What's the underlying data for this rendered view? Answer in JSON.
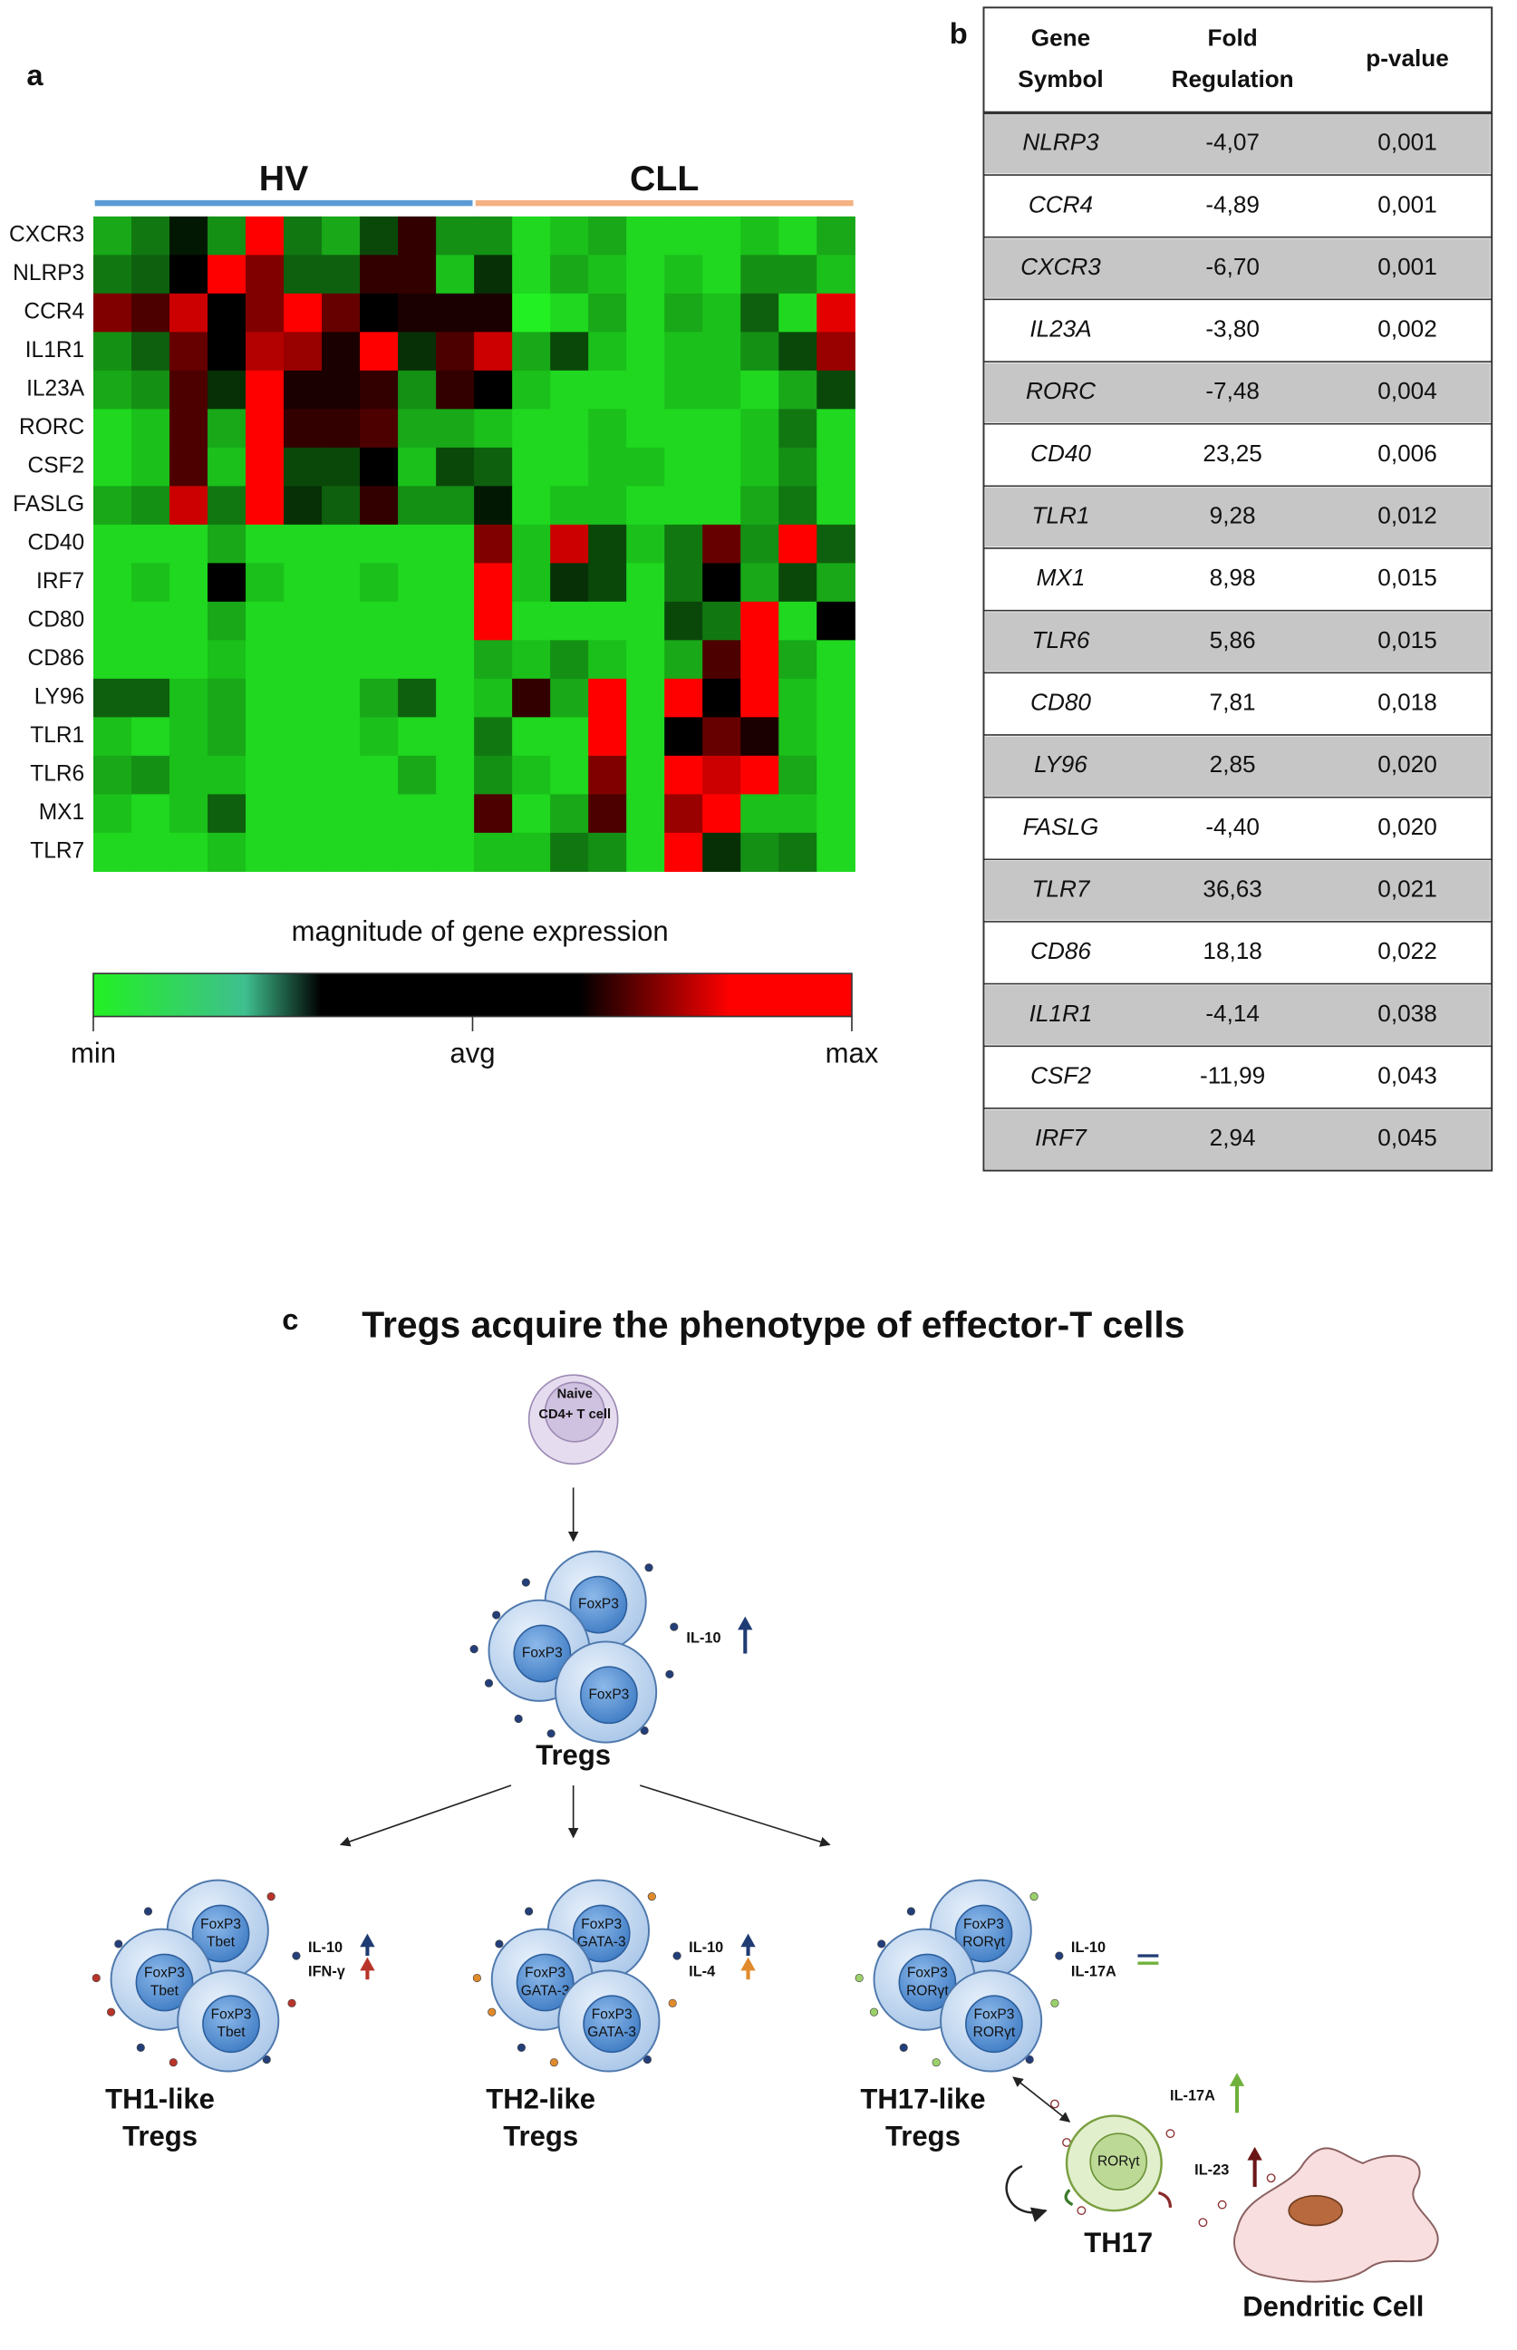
{
  "chart_data": {
    "type": "heatmap",
    "panel": "a",
    "groups": [
      {
        "name": "HV",
        "color": "#5b9bd5"
      },
      {
        "name": "CLL",
        "color": "#f4b183"
      }
    ],
    "x": [
      null,
      null,
      null,
      null,
      null,
      null,
      null,
      null,
      null,
      null,
      null,
      null,
      null,
      null,
      null,
      null,
      null,
      null,
      null,
      null
    ],
    "rows": [
      "CXCR3",
      "NLRP3",
      "CCR4",
      "IL1R1",
      "IL23A",
      "RORC",
      "CSF2",
      "FASLG",
      "CD40",
      "IRF7",
      "CD80",
      "CD86",
      "LY96",
      "TLR1",
      "TLR6",
      "MX1",
      "TLR7"
    ],
    "values": [
      [
        -0.7,
        -0.5,
        -0.1,
        -0.6,
        1,
        -0.5,
        -0.7,
        -0.3,
        0.2,
        -0.6,
        -0.6,
        -0.9,
        -0.8,
        -0.7,
        -0.9,
        -0.9,
        -0.9,
        -0.8,
        -0.9,
        -0.7
      ],
      [
        -0.5,
        -0.4,
        0,
        1,
        0.5,
        -0.4,
        -0.4,
        0.2,
        0.2,
        -0.8,
        -0.2,
        -0.9,
        -0.7,
        -0.8,
        -0.9,
        -0.8,
        -0.9,
        -0.6,
        -0.6,
        -0.8
      ],
      [
        0.5,
        0.3,
        0.8,
        0,
        0.5,
        1,
        0.4,
        0,
        0.1,
        0.1,
        0.1,
        -1,
        -0.9,
        -0.7,
        -0.9,
        -0.7,
        -0.8,
        -0.4,
        -0.9,
        0.9
      ],
      [
        -0.6,
        -0.4,
        0.4,
        0,
        0.7,
        0.6,
        0.1,
        1,
        -0.2,
        0.3,
        0.8,
        -0.7,
        -0.3,
        -0.8,
        -0.9,
        -0.8,
        -0.8,
        -0.6,
        -0.3,
        0.6
      ],
      [
        -0.7,
        -0.6,
        0.3,
        -0.2,
        1,
        0.1,
        0.1,
        0.2,
        -0.6,
        0.2,
        0,
        -0.8,
        -0.9,
        -0.9,
        -0.9,
        -0.8,
        -0.8,
        -0.9,
        -0.7,
        -0.3
      ],
      [
        -0.9,
        -0.8,
        0.3,
        -0.7,
        1,
        0.2,
        0.2,
        0.3,
        -0.7,
        -0.7,
        -0.8,
        -0.9,
        -0.9,
        -0.8,
        -0.9,
        -0.9,
        -0.9,
        -0.8,
        -0.5,
        -0.9
      ],
      [
        -0.9,
        -0.8,
        0.3,
        -0.8,
        1,
        -0.3,
        -0.3,
        0,
        -0.8,
        -0.3,
        -0.4,
        -0.9,
        -0.9,
        -0.8,
        -0.8,
        -0.9,
        -0.9,
        -0.8,
        -0.6,
        -0.9
      ],
      [
        -0.7,
        -0.6,
        0.8,
        -0.5,
        1,
        -0.2,
        -0.4,
        0.2,
        -0.6,
        -0.6,
        -0.1,
        -0.9,
        -0.8,
        -0.8,
        -0.9,
        -0.9,
        -0.9,
        -0.7,
        -0.5,
        -0.9
      ],
      [
        -0.9,
        -0.9,
        -0.9,
        -0.7,
        -0.9,
        -0.9,
        -0.9,
        -0.9,
        -0.9,
        -0.9,
        0.5,
        -0.8,
        0.8,
        -0.3,
        -0.8,
        -0.5,
        0.4,
        -0.6,
        1,
        -0.4
      ],
      [
        -0.9,
        -0.8,
        -0.9,
        0,
        -0.8,
        -0.9,
        -0.9,
        -0.8,
        -0.9,
        -0.9,
        1,
        -0.8,
        -0.2,
        -0.3,
        -0.9,
        -0.5,
        0,
        -0.7,
        -0.3,
        -0.7
      ],
      [
        -0.9,
        -0.9,
        -0.9,
        -0.7,
        -0.9,
        -0.9,
        -0.9,
        -0.9,
        -0.9,
        -0.9,
        1,
        -0.9,
        -0.9,
        -0.9,
        -0.9,
        -0.3,
        -0.5,
        1,
        -0.9,
        0
      ],
      [
        -0.9,
        -0.9,
        -0.9,
        -0.8,
        -0.9,
        -0.9,
        -0.9,
        -0.9,
        -0.9,
        -0.9,
        -0.7,
        -0.8,
        -0.6,
        -0.8,
        -0.9,
        -0.7,
        0.3,
        1,
        -0.7,
        -0.9
      ],
      [
        -0.4,
        -0.4,
        -0.8,
        -0.7,
        -0.9,
        -0.9,
        -0.9,
        -0.7,
        -0.4,
        -0.9,
        -0.8,
        0.2,
        -0.7,
        1,
        -0.9,
        1,
        0,
        1,
        -0.8,
        -0.9
      ],
      [
        -0.8,
        -0.9,
        -0.8,
        -0.7,
        -0.9,
        -0.9,
        -0.9,
        -0.8,
        -0.9,
        -0.9,
        -0.5,
        -0.9,
        -0.9,
        1,
        -0.9,
        0,
        0.4,
        0.1,
        -0.8,
        -0.9
      ],
      [
        -0.7,
        -0.6,
        -0.8,
        -0.8,
        -0.9,
        -0.9,
        -0.9,
        -0.9,
        -0.7,
        -0.9,
        -0.6,
        -0.8,
        -0.9,
        0.5,
        -0.9,
        1,
        0.8,
        1,
        -0.7,
        -0.9
      ],
      [
        -0.8,
        -0.9,
        -0.8,
        -0.4,
        -0.9,
        -0.9,
        -0.9,
        -0.9,
        -0.9,
        -0.9,
        0.3,
        -0.9,
        -0.7,
        0.3,
        -0.9,
        0.6,
        1,
        -0.8,
        -0.8,
        -0.9
      ],
      [
        -0.9,
        -0.9,
        -0.9,
        -0.8,
        -0.9,
        -0.9,
        -0.9,
        -0.9,
        -0.9,
        -0.9,
        -0.8,
        -0.8,
        -0.5,
        -0.6,
        -0.9,
        1,
        -0.2,
        -0.6,
        -0.5,
        -0.9
      ]
    ],
    "zlim": [
      -1,
      1
    ],
    "colors": [
      "#22f022",
      "#000000",
      "#ff0000"
    ],
    "colorbar_label": "magnitude of gene expression",
    "colorbar_ticks": [
      {
        "value": -1,
        "label": "min"
      },
      {
        "value": 0,
        "label": "avg"
      },
      {
        "value": 1,
        "label": "max"
      }
    ]
  },
  "table": {
    "panel": "b",
    "header": [
      [
        "Gene",
        "Symbol"
      ],
      [
        "Fold",
        "Regulation"
      ],
      [
        "p-value"
      ]
    ],
    "rows": [
      [
        "NLRP3",
        "-4,07",
        "0,001"
      ],
      [
        "CCR4",
        "-4,89",
        "0,001"
      ],
      [
        "CXCR3",
        "-6,70",
        "0,001"
      ],
      [
        "IL23A",
        "-3,80",
        "0,002"
      ],
      [
        "RORC",
        "-7,48",
        "0,004"
      ],
      [
        "CD40",
        "23,25",
        "0,006"
      ],
      [
        "TLR1",
        "9,28",
        "0,012"
      ],
      [
        "MX1",
        "8,98",
        "0,015"
      ],
      [
        "TLR6",
        "5,86",
        "0,015"
      ],
      [
        "CD80",
        "7,81",
        "0,018"
      ],
      [
        "LY96",
        "2,85",
        "0,020"
      ],
      [
        "FASLG",
        "-4,40",
        "0,020"
      ],
      [
        "TLR7",
        "36,63",
        "0,021"
      ],
      [
        "CD86",
        "18,18",
        "0,022"
      ],
      [
        "IL1R1",
        "-4,14",
        "0,038"
      ],
      [
        "CSF2",
        "-11,99",
        "0,043"
      ],
      [
        "IRF7",
        "2,94",
        "0,045"
      ]
    ]
  },
  "diagram": {
    "panel": "c",
    "title": "Tregs acquire the phenotype of effector-T cells",
    "naive": [
      "Naive",
      "CD4+ T cell"
    ],
    "tregs": {
      "cells": [
        [
          "FoxP3"
        ],
        [
          "FoxP3"
        ],
        [
          "FoxP3"
        ]
      ],
      "cytokines": [
        "IL-10"
      ],
      "label": [
        "Tregs"
      ]
    },
    "subtypes": [
      {
        "cells": [
          [
            "FoxP3",
            "Tbet"
          ],
          [
            "FoxP3",
            "Tbet"
          ],
          [
            "FoxP3",
            "Tbet"
          ]
        ],
        "cytokines": [
          "IL-10",
          "IFN-γ"
        ],
        "label": [
          "TH1-like",
          "Tregs"
        ]
      },
      {
        "cells": [
          [
            "FoxP3",
            "GATA-3"
          ],
          [
            "FoxP3",
            "GATA-3"
          ],
          [
            "FoxP3",
            "GATA-3"
          ]
        ],
        "cytokines": [
          "IL-10",
          "IL-4"
        ],
        "label": [
          "TH2-like",
          "Tregs"
        ]
      },
      {
        "cells": [
          [
            "FoxP3",
            "RORγt"
          ],
          [
            "FoxP3",
            "RORγt"
          ],
          [
            "FoxP3",
            "RORγt"
          ]
        ],
        "cytokines": [
          "IL-10",
          "IL-17A"
        ],
        "label": [
          "TH17-like",
          "Tregs"
        ]
      }
    ],
    "th17": {
      "cell": "RORγt",
      "cytokines": [
        "IL-17A",
        "IL-23"
      ],
      "label": "TH17"
    },
    "dendritic": "Dendritic Cell"
  }
}
